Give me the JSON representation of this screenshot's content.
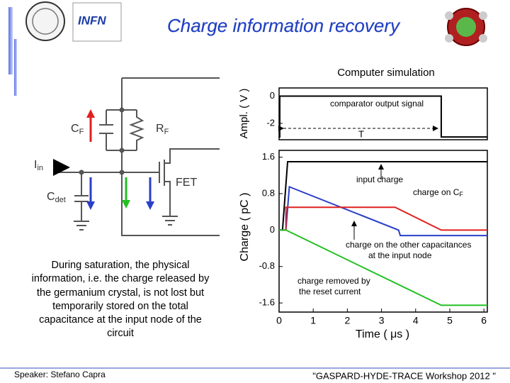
{
  "header": {
    "title": "Charge information recovery",
    "logo_text": "INFN"
  },
  "caption": "Computer simulation",
  "circuit": {
    "cf": {
      "main": "C",
      "sub": "F"
    },
    "rf": {
      "main": "R",
      "sub": "F"
    },
    "iin": {
      "main": "I",
      "sub": "in"
    },
    "cdet": {
      "main": "C",
      "sub": "det"
    },
    "fet": "FET"
  },
  "body_text": "During saturation, the physical information, i.e. the charge released by the germanium crystal, is not lost but temporarily stored on the total capacitance at the input node of the circuit",
  "footer": {
    "speaker": "Speaker: Stefano Capra",
    "event": "\"GASPARD-HYDE-TRACE Workshop 2012 \""
  },
  "chart_data": [
    {
      "type": "line",
      "ylabel": "Ampl. ( V )",
      "xlim": [
        0,
        6.1
      ],
      "ylim": [
        -3.2,
        0.6
      ],
      "yticks": [
        0,
        -2
      ],
      "annotations": {
        "signal": "comparator output signal",
        "period": "T"
      },
      "series": [
        {
          "color": "#000000",
          "x": [
            0,
            0.02,
            0.02,
            4.75,
            4.75,
            6.1
          ],
          "values": [
            -3,
            -3,
            0,
            0,
            -3,
            -3
          ]
        }
      ]
    },
    {
      "type": "line",
      "xlabel": "Time ( μs )",
      "ylabel": "Charge ( pC )",
      "xlim": [
        0,
        6.1
      ],
      "ylim": [
        -1.8,
        1.75
      ],
      "xticks": [
        0,
        1,
        2,
        3,
        4,
        5,
        6
      ],
      "yticks": [
        1.6,
        0.8,
        0,
        -0.8,
        -1.6
      ],
      "annotations": {
        "input": "input charge",
        "cf": {
          "main": "charge on C",
          "sub": "F"
        },
        "other1": "charge on the other capacitances",
        "other2": "at the input node",
        "reset1": "charge removed by",
        "reset2": "the reset current"
      },
      "series": [
        {
          "color": "#000000",
          "x": [
            0,
            0.1,
            0.25,
            6.1
          ],
          "values": [
            0,
            0,
            1.5,
            1.5
          ]
        },
        {
          "color": "#2a3fc8",
          "x": [
            0,
            0.2,
            0.3,
            3.5,
            3.55,
            6.1
          ],
          "values": [
            0,
            0,
            0.95,
            0,
            -0.12,
            -0.12
          ]
        },
        {
          "color": "#e02020",
          "x": [
            0,
            0.2,
            0.2,
            3.4,
            4.75,
            6.1
          ],
          "values": [
            0,
            0,
            0.5,
            0.5,
            0,
            0
          ]
        },
        {
          "color": "#22c022",
          "x": [
            0,
            0.2,
            4.75,
            6.1
          ],
          "values": [
            0,
            0,
            -1.65,
            -1.65
          ]
        }
      ]
    }
  ]
}
